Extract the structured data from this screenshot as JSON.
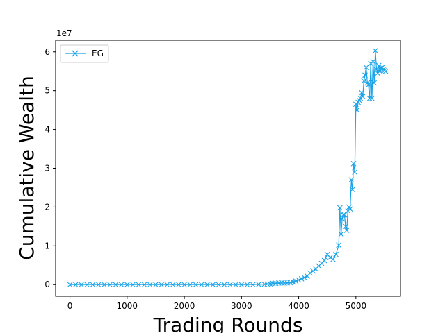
{
  "chart_data": {
    "type": "line",
    "title": "",
    "xlabel": "Trading Rounds",
    "ylabel": "Cumulative Wealth",
    "y_offset_label": "1e7",
    "xlim": [
      -250,
      5780
    ],
    "ylim": [
      -3000000,
      63000000
    ],
    "x_ticks": [
      0,
      1000,
      2000,
      3000,
      4000,
      5000
    ],
    "x_tick_labels": [
      "0",
      "1000",
      "2000",
      "3000",
      "4000",
      "5000"
    ],
    "y_ticks": [
      0,
      10000000,
      20000000,
      30000000,
      40000000,
      50000000,
      60000000
    ],
    "y_tick_labels": [
      "0",
      "1",
      "2",
      "3",
      "4",
      "5",
      "6"
    ],
    "grid": false,
    "legend_position": "top-left",
    "series": [
      {
        "name": "EG",
        "color": "#1aa3e8",
        "marker": "x",
        "x": [
          0,
          100,
          200,
          300,
          400,
          500,
          600,
          700,
          800,
          900,
          1000,
          1100,
          1200,
          1300,
          1400,
          1500,
          1600,
          1700,
          1800,
          1900,
          2000,
          2100,
          2200,
          2300,
          2400,
          2500,
          2600,
          2700,
          2800,
          2900,
          3000,
          3100,
          3200,
          3300,
          3400,
          3450,
          3500,
          3550,
          3600,
          3650,
          3700,
          3750,
          3800,
          3850,
          3900,
          3950,
          4000,
          4050,
          4100,
          4150,
          4200,
          4250,
          4300,
          4350,
          4400,
          4450,
          4500,
          4550,
          4600,
          4650,
          4700,
          4720,
          4740,
          4760,
          4780,
          4800,
          4820,
          4840,
          4860,
          4880,
          4900,
          4920,
          4940,
          4960,
          4980,
          5000,
          5020,
          5040,
          5060,
          5080,
          5100,
          5120,
          5140,
          5160,
          5180,
          5200,
          5220,
          5240,
          5260,
          5280,
          5300,
          5320,
          5340,
          5360,
          5380,
          5400,
          5420,
          5440,
          5460,
          5480,
          5500,
          5520
        ],
        "y": [
          0,
          0,
          0,
          0,
          0,
          0,
          0,
          0,
          0,
          0,
          0,
          0,
          0,
          0,
          0,
          0,
          0,
          0,
          0,
          0,
          0,
          0,
          0,
          0,
          0,
          0,
          0,
          0,
          0,
          0,
          0,
          0,
          0,
          50000,
          100000,
          150000,
          200000,
          300000,
          350000,
          400000,
          450000,
          400000,
          450000,
          500000,
          700000,
          900000,
          1200000,
          1500000,
          1800000,
          2200000,
          3000000,
          3500000,
          4000000,
          4800000,
          5500000,
          6200000,
          7800000,
          7000000,
          6500000,
          7800000,
          10200000,
          19800000,
          13000000,
          17000000,
          18000000,
          18000000,
          15000000,
          14000000,
          19000000,
          20000000,
          19500000,
          27000000,
          24500000,
          31200000,
          29000000,
          46500000,
          45000000,
          47000000,
          47500000,
          48000000,
          49500000,
          48500000,
          52500000,
          54000000,
          56000000,
          52000000,
          51500000,
          48000000,
          57000000,
          48000000,
          57500000,
          52000000,
          60300000,
          55500000,
          54500000,
          56500000,
          55000000,
          55800000,
          56000000,
          55500000,
          55200000,
          55000000
        ]
      }
    ]
  }
}
